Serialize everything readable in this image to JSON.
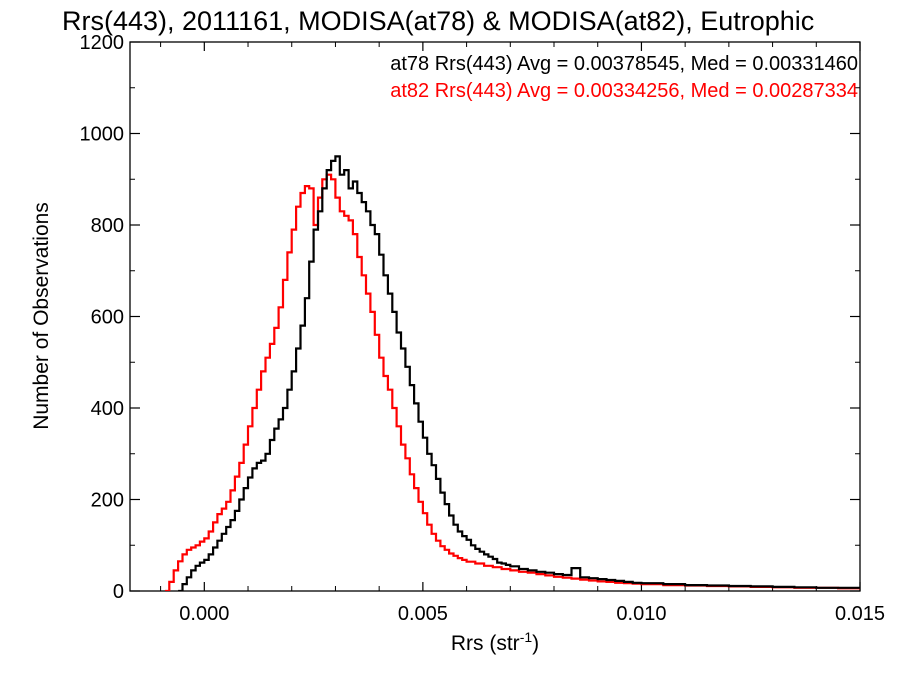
{
  "chart_data": {
    "type": "line",
    "title": "Rrs(443), 2011161, MODISA(at78) & MODISA(at82), Eutrophic",
    "xlabel": "Rrs (str",
    "xlabel_sup": "-1",
    "xlabel_close": ")",
    "ylabel": "Number of Observations",
    "xlim": [
      -0.0017,
      0.015
    ],
    "ylim": [
      0,
      1200
    ],
    "xticks": [
      0.0,
      0.005,
      0.01,
      0.015
    ],
    "xtick_labels": [
      "0.000",
      "0.005",
      "0.010",
      "0.015"
    ],
    "yticks": [
      0,
      200,
      400,
      600,
      800,
      1000,
      1200
    ],
    "ytick_labels": [
      "0",
      "200",
      "400",
      "600",
      "800",
      "1000",
      "1200"
    ],
    "grid": false,
    "series": [
      {
        "name": "at78",
        "color": "#000000",
        "stats_label": "at78 Rrs(443) Avg = 0.00378545, Med = 0.00331460",
        "points": [
          [
            -0.0006,
            0
          ],
          [
            -0.0005,
            15
          ],
          [
            -0.0004,
            30
          ],
          [
            -0.0003,
            45
          ],
          [
            -0.0002,
            55
          ],
          [
            -0.0001,
            62
          ],
          [
            0.0,
            68
          ],
          [
            0.0001,
            80
          ],
          [
            0.0002,
            95
          ],
          [
            0.0003,
            110
          ],
          [
            0.0004,
            125
          ],
          [
            0.0005,
            140
          ],
          [
            0.0006,
            155
          ],
          [
            0.0007,
            175
          ],
          [
            0.0008,
            200
          ],
          [
            0.0009,
            225
          ],
          [
            0.001,
            248
          ],
          [
            0.0011,
            268
          ],
          [
            0.0012,
            280
          ],
          [
            0.0013,
            285
          ],
          [
            0.0014,
            300
          ],
          [
            0.0015,
            330
          ],
          [
            0.0016,
            355
          ],
          [
            0.0017,
            375
          ],
          [
            0.0018,
            400
          ],
          [
            0.0019,
            440
          ],
          [
            0.002,
            480
          ],
          [
            0.0021,
            530
          ],
          [
            0.0022,
            580
          ],
          [
            0.0023,
            640
          ],
          [
            0.0024,
            720
          ],
          [
            0.0025,
            790
          ],
          [
            0.0026,
            830
          ],
          [
            0.0027,
            880
          ],
          [
            0.0028,
            920
          ],
          [
            0.0029,
            940
          ],
          [
            0.003,
            950
          ],
          [
            0.0031,
            910
          ],
          [
            0.0032,
            920
          ],
          [
            0.0033,
            880
          ],
          [
            0.0034,
            895
          ],
          [
            0.0035,
            870
          ],
          [
            0.0036,
            850
          ],
          [
            0.0037,
            830
          ],
          [
            0.0038,
            800
          ],
          [
            0.0039,
            780
          ],
          [
            0.004,
            735
          ],
          [
            0.0041,
            690
          ],
          [
            0.0042,
            650
          ],
          [
            0.0043,
            610
          ],
          [
            0.0044,
            565
          ],
          [
            0.0045,
            530
          ],
          [
            0.0046,
            490
          ],
          [
            0.0047,
            450
          ],
          [
            0.0048,
            410
          ],
          [
            0.0049,
            370
          ],
          [
            0.005,
            335
          ],
          [
            0.0051,
            300
          ],
          [
            0.0052,
            275
          ],
          [
            0.0053,
            245
          ],
          [
            0.0054,
            215
          ],
          [
            0.0055,
            190
          ],
          [
            0.0056,
            165
          ],
          [
            0.0057,
            145
          ],
          [
            0.0058,
            130
          ],
          [
            0.0059,
            120
          ],
          [
            0.006,
            112
          ],
          [
            0.0061,
            100
          ],
          [
            0.0062,
            92
          ],
          [
            0.0063,
            86
          ],
          [
            0.0064,
            80
          ],
          [
            0.0065,
            75
          ],
          [
            0.0066,
            70
          ],
          [
            0.0067,
            62
          ],
          [
            0.0068,
            60
          ],
          [
            0.0069,
            57
          ],
          [
            0.007,
            54
          ],
          [
            0.0072,
            48
          ],
          [
            0.0074,
            45
          ],
          [
            0.0076,
            42
          ],
          [
            0.0078,
            40
          ],
          [
            0.008,
            37
          ],
          [
            0.0082,
            35
          ],
          [
            0.0084,
            50
          ],
          [
            0.0086,
            30
          ],
          [
            0.0088,
            28
          ],
          [
            0.009,
            26
          ],
          [
            0.0092,
            24
          ],
          [
            0.0094,
            22
          ],
          [
            0.0096,
            20
          ],
          [
            0.0098,
            18
          ],
          [
            0.01,
            17
          ],
          [
            0.0105,
            15
          ],
          [
            0.011,
            13
          ],
          [
            0.0115,
            12
          ],
          [
            0.012,
            11
          ],
          [
            0.0125,
            10
          ],
          [
            0.013,
            9
          ],
          [
            0.0135,
            8
          ],
          [
            0.014,
            7
          ],
          [
            0.0145,
            7
          ],
          [
            0.015,
            6
          ]
        ]
      },
      {
        "name": "at82",
        "color": "#ff0000",
        "stats_label": "at82 Rrs(443) Avg = 0.00334256, Med = 0.00287334",
        "points": [
          [
            -0.0009,
            0
          ],
          [
            -0.0008,
            20
          ],
          [
            -0.0007,
            45
          ],
          [
            -0.0006,
            65
          ],
          [
            -0.0005,
            80
          ],
          [
            -0.0004,
            90
          ],
          [
            -0.0003,
            95
          ],
          [
            -0.0002,
            100
          ],
          [
            -0.0001,
            108
          ],
          [
            0.0,
            115
          ],
          [
            0.0001,
            130
          ],
          [
            0.0002,
            150
          ],
          [
            0.0003,
            168
          ],
          [
            0.0004,
            180
          ],
          [
            0.0005,
            195
          ],
          [
            0.0006,
            220
          ],
          [
            0.0007,
            250
          ],
          [
            0.0008,
            280
          ],
          [
            0.0009,
            320
          ],
          [
            0.001,
            360
          ],
          [
            0.0011,
            400
          ],
          [
            0.0012,
            440
          ],
          [
            0.0013,
            480
          ],
          [
            0.0014,
            510
          ],
          [
            0.0015,
            540
          ],
          [
            0.0016,
            575
          ],
          [
            0.0017,
            620
          ],
          [
            0.0018,
            680
          ],
          [
            0.0019,
            740
          ],
          [
            0.002,
            790
          ],
          [
            0.0021,
            840
          ],
          [
            0.0022,
            870
          ],
          [
            0.0023,
            885
          ],
          [
            0.0024,
            880
          ],
          [
            0.0025,
            800
          ],
          [
            0.0026,
            860
          ],
          [
            0.0027,
            900
          ],
          [
            0.0028,
            910
          ],
          [
            0.0029,
            900
          ],
          [
            0.003,
            860
          ],
          [
            0.0031,
            830
          ],
          [
            0.0032,
            820
          ],
          [
            0.0033,
            810
          ],
          [
            0.0034,
            780
          ],
          [
            0.0035,
            730
          ],
          [
            0.0036,
            690
          ],
          [
            0.0037,
            650
          ],
          [
            0.0038,
            610
          ],
          [
            0.0039,
            560
          ],
          [
            0.004,
            510
          ],
          [
            0.0041,
            470
          ],
          [
            0.0042,
            440
          ],
          [
            0.0043,
            400
          ],
          [
            0.0044,
            360
          ],
          [
            0.0045,
            320
          ],
          [
            0.0046,
            290
          ],
          [
            0.0047,
            255
          ],
          [
            0.0048,
            225
          ],
          [
            0.0049,
            195
          ],
          [
            0.005,
            170
          ],
          [
            0.0051,
            145
          ],
          [
            0.0052,
            125
          ],
          [
            0.0053,
            110
          ],
          [
            0.0054,
            98
          ],
          [
            0.0055,
            90
          ],
          [
            0.0056,
            82
          ],
          [
            0.0057,
            77
          ],
          [
            0.0058,
            72
          ],
          [
            0.0059,
            68
          ],
          [
            0.006,
            64
          ],
          [
            0.0062,
            60
          ],
          [
            0.0064,
            55
          ],
          [
            0.0066,
            52
          ],
          [
            0.0068,
            48
          ],
          [
            0.007,
            45
          ],
          [
            0.0072,
            42
          ],
          [
            0.0074,
            40
          ],
          [
            0.0076,
            37
          ],
          [
            0.0078,
            34
          ],
          [
            0.008,
            31
          ],
          [
            0.0082,
            29
          ],
          [
            0.0084,
            27
          ],
          [
            0.0086,
            25
          ],
          [
            0.0088,
            23
          ],
          [
            0.009,
            21
          ],
          [
            0.0092,
            20
          ],
          [
            0.0094,
            18
          ],
          [
            0.0096,
            17
          ],
          [
            0.0098,
            16
          ],
          [
            0.01,
            15
          ],
          [
            0.0105,
            13
          ],
          [
            0.011,
            12
          ],
          [
            0.0115,
            11
          ],
          [
            0.012,
            10
          ],
          [
            0.0125,
            9
          ],
          [
            0.013,
            8
          ],
          [
            0.0135,
            7
          ],
          [
            0.014,
            7
          ],
          [
            0.0145,
            6
          ],
          [
            0.015,
            6
          ]
        ]
      }
    ]
  }
}
